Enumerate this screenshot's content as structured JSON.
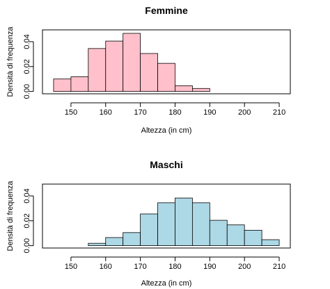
{
  "chart_data": [
    {
      "type": "bar",
      "title": "Femmine",
      "xlabel": "Altezza (in cm)",
      "ylabel": "Densità di frequenza",
      "xlim": [
        141.8,
        213.2
      ],
      "ylim": [
        -0.0019,
        0.0495
      ],
      "x_ticks": [
        150,
        160,
        170,
        180,
        190,
        200,
        210
      ],
      "y_ticks": [
        0.0,
        0.02,
        0.04
      ],
      "y_tick_labels": [
        "0.00",
        "0.02",
        "0.04"
      ],
      "bin_edges": [
        145,
        150,
        155,
        160,
        165,
        170,
        175,
        180,
        185,
        190,
        195,
        200,
        205,
        210
      ],
      "values": [
        0.01,
        0.0118,
        0.0345,
        0.0405,
        0.0467,
        0.0305,
        0.0226,
        0.0046,
        0.0024,
        0,
        0,
        0,
        0
      ],
      "bar_color": "#FFC0CB",
      "grid": false
    },
    {
      "type": "bar",
      "title": "Maschi",
      "xlabel": "Altezza (in cm)",
      "ylabel": "Densità di frequenza",
      "xlim": [
        141.8,
        213.2
      ],
      "ylim": [
        -0.0019,
        0.0495
      ],
      "x_ticks": [
        150,
        160,
        170,
        180,
        190,
        200,
        210
      ],
      "y_ticks": [
        0.0,
        0.02,
        0.04
      ],
      "y_tick_labels": [
        "0.00",
        "0.02",
        "0.04"
      ],
      "bin_edges": [
        145,
        150,
        155,
        160,
        165,
        170,
        175,
        180,
        185,
        190,
        195,
        200,
        205,
        210
      ],
      "values": [
        0,
        0,
        0.0019,
        0.0065,
        0.0105,
        0.0255,
        0.0345,
        0.0383,
        0.0345,
        0.0204,
        0.0167,
        0.0124,
        0.0048
      ],
      "bar_color": "#ADD8E6",
      "grid": false
    }
  ]
}
